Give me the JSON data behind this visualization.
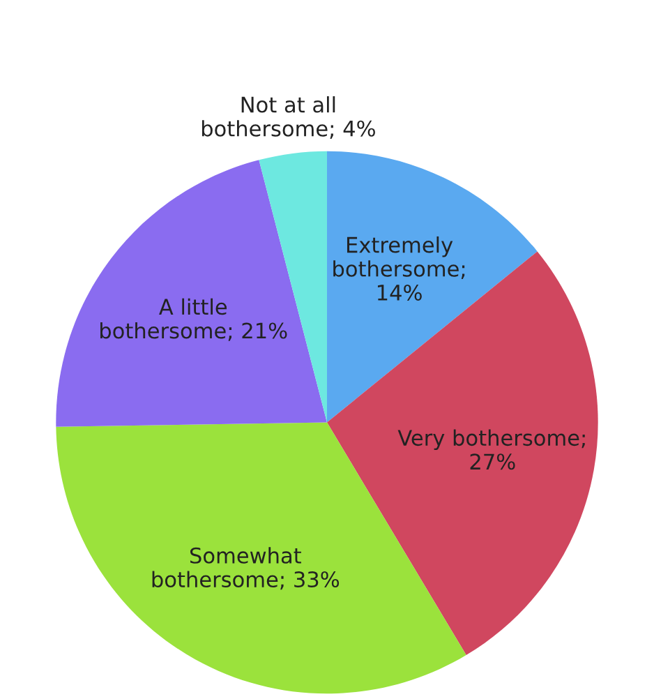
{
  "chart_data": {
    "type": "pie",
    "categories": [
      "Extremely\nbothersome;\n14%",
      "Very bothersome;\n27%",
      "Somewhat\nbothersome; 33%",
      "A little\nbothersome; 21%",
      "Not at all\nbothersome; 4%"
    ],
    "values": [
      14,
      27,
      33,
      21,
      4
    ],
    "colors": [
      "#5aa9f0",
      "#d0475f",
      "#9be23c",
      "#8a6cf0",
      "#6de8e0"
    ]
  }
}
